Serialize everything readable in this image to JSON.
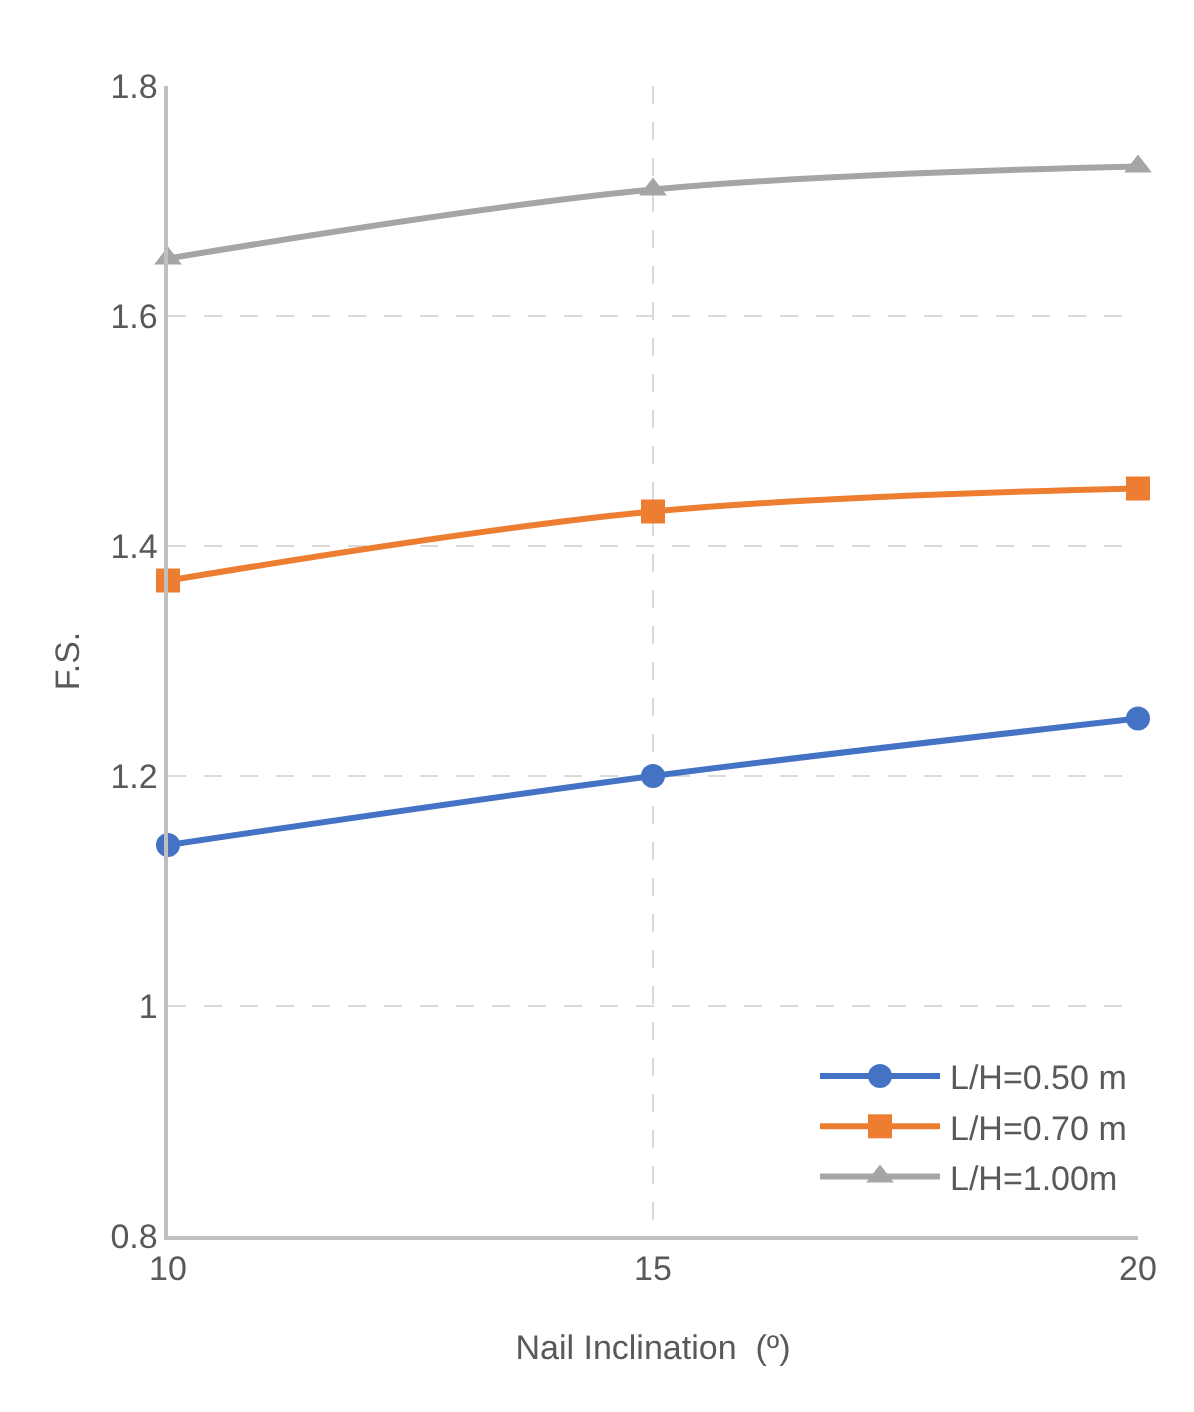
{
  "chart_data": {
    "type": "line",
    "xlabel": "Nail Inclination  (º)",
    "ylabel": "F.S.",
    "x": [
      10,
      15,
      20
    ],
    "series": [
      {
        "name": "L/H=0.50 m",
        "color": "#4472c4",
        "marker": "circle",
        "values": [
          1.14,
          1.2,
          1.25
        ]
      },
      {
        "name": "L/H=0.70 m",
        "color": "#ed7d31",
        "marker": "square",
        "values": [
          1.37,
          1.43,
          1.45
        ]
      },
      {
        "name": "L/H=1.00m",
        "color": "#a5a5a5",
        "marker": "triangle",
        "values": [
          1.65,
          1.71,
          1.73
        ]
      }
    ],
    "xlim": [
      10,
      20
    ],
    "xticks": [
      10,
      15,
      20
    ],
    "ylim": [
      0.8,
      1.8
    ],
    "yticks": [
      0.8,
      1,
      1.2,
      1.4,
      1.6,
      1.8
    ],
    "grid": true,
    "legend": "bottom right",
    "line_style": "solid"
  }
}
